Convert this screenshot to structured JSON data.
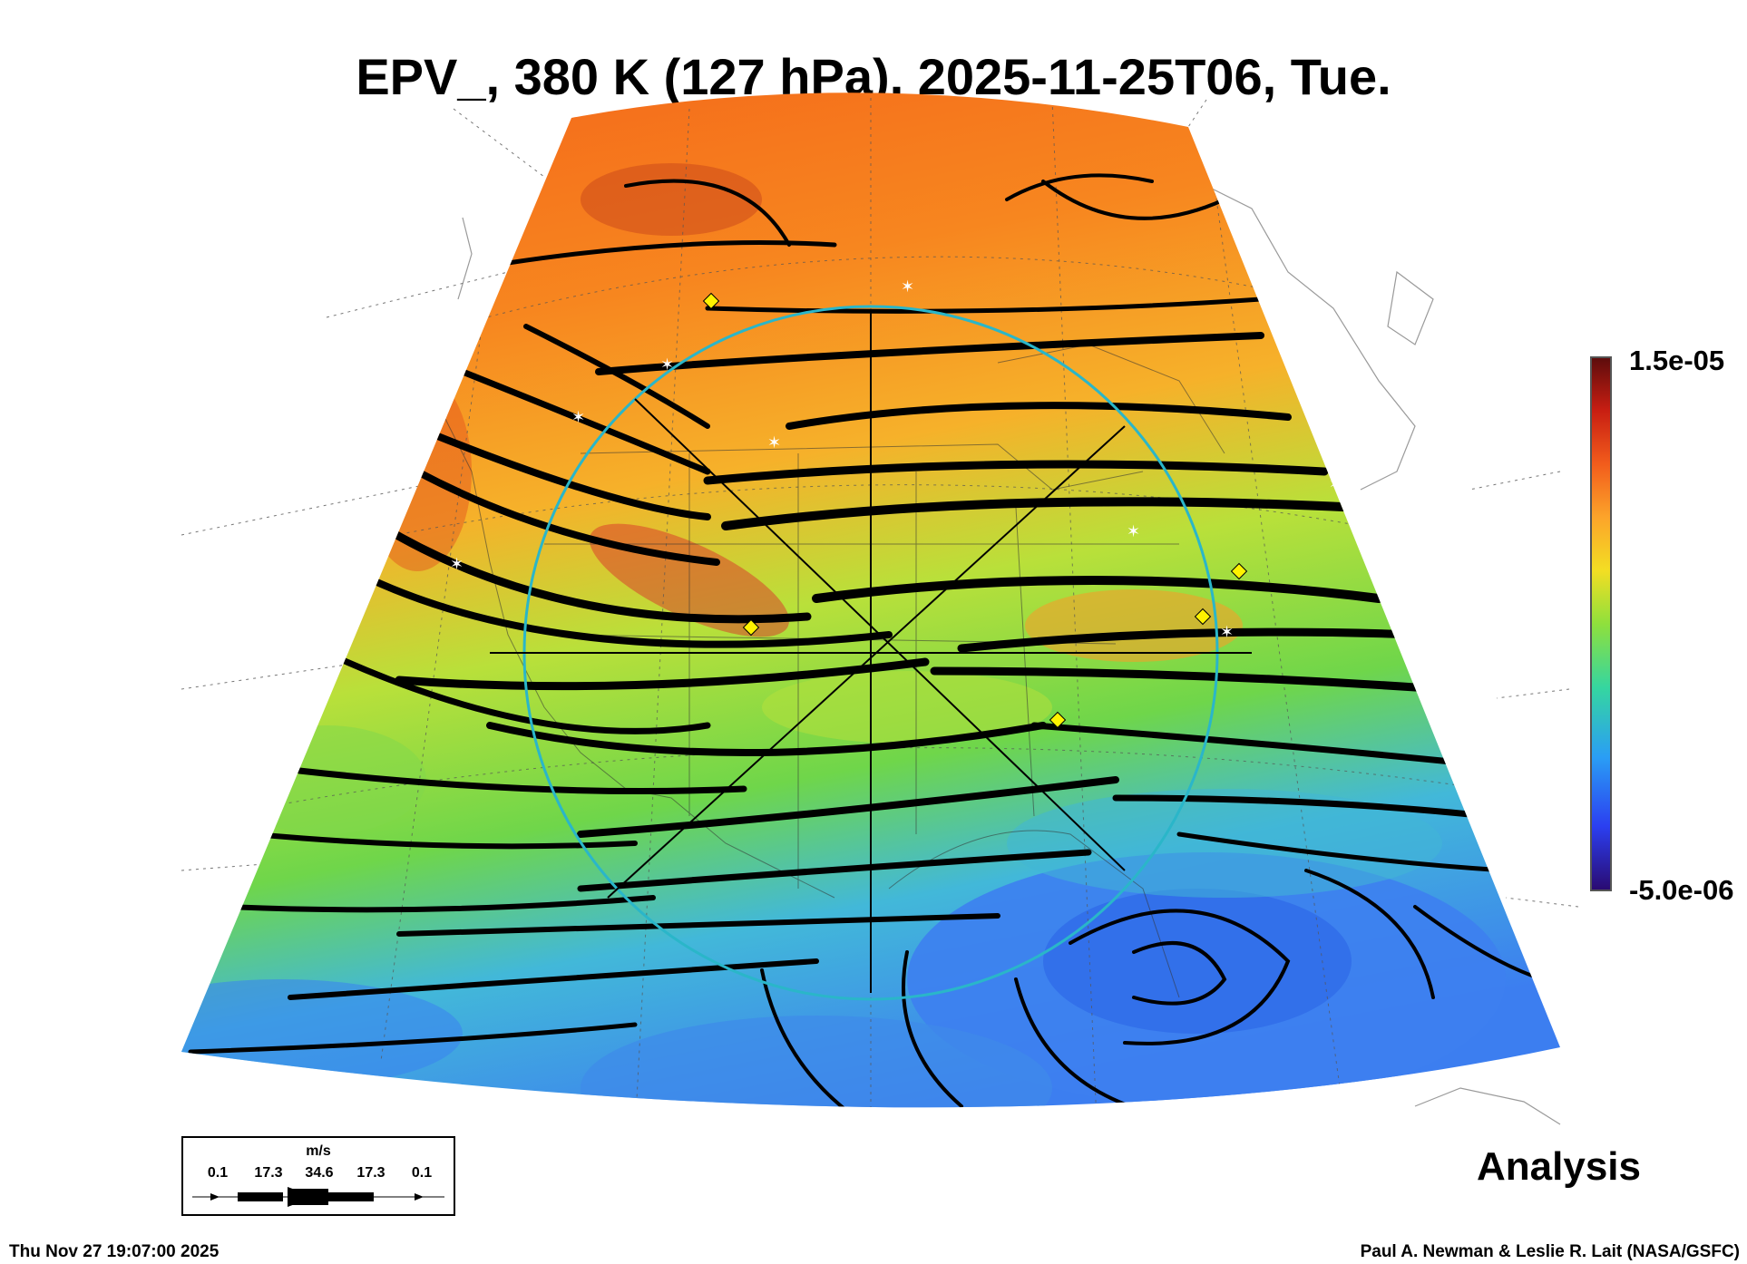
{
  "title": "EPV_, 380 K (127 hPa), 2025-11-25T06, Tue.",
  "colorbar": {
    "max_label": "1.5e-05",
    "min_label": "-5.0e-06",
    "colors": [
      "#2a0a70",
      "#2b3ff0",
      "#2a9ef5",
      "#35d6a0",
      "#8fe03c",
      "#f3de23",
      "#fca42a",
      "#f25c1c",
      "#c81e12",
      "#5c0c0c"
    ]
  },
  "legend": {
    "unit": "m/s",
    "ticks": [
      "0.1",
      "17.3",
      "34.6",
      "17.3",
      "0.1"
    ]
  },
  "product_label": "Analysis",
  "footer": {
    "timestamp": "Thu Nov 27 19:07:00 2025",
    "credit": "Paul A. Newman & Leslie R. Lait (NASA/GSFC)"
  },
  "map_colors": {
    "high_pv": "#f77a1c",
    "mid_pv": "#8fdc3a",
    "low_pv": "#3f8cf2",
    "streamline": "#000000",
    "ring": "#2ab6c9",
    "marker_diamond": "#fff200"
  }
}
